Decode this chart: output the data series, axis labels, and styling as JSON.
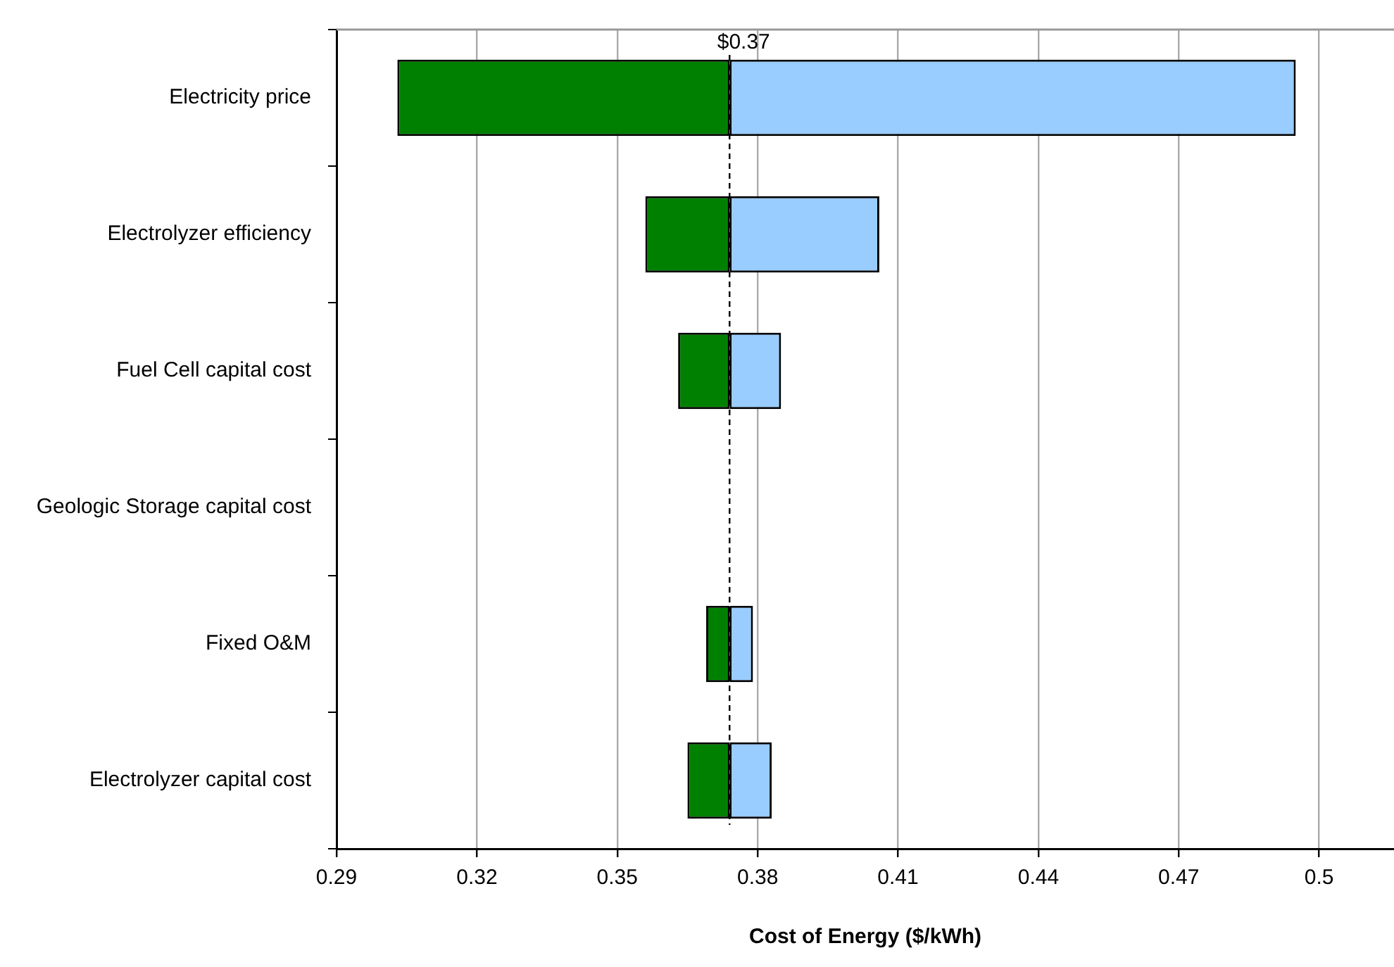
{
  "chart_data": {
    "type": "bar",
    "orientation": "horizontal",
    "xlabel": "Cost of Energy ($/kWh)",
    "categories": [
      "Electricity price",
      "Electrolyzer efficiency",
      "Fuel Cell capital cost",
      "Geologic Storage capital cost",
      "Fixed O&M",
      "Electrolyzer capital cost"
    ],
    "series": [
      {
        "color": "#008000",
        "base": [
          0.303,
          0.356,
          0.363,
          null,
          0.369,
          0.365
        ],
        "values": [
          0.071,
          0.018,
          0.011,
          null,
          0.005,
          0.009
        ]
      },
      {
        "color": "#99ccff",
        "base": [
          0.374,
          0.374,
          0.374,
          null,
          0.374,
          0.374
        ],
        "values": [
          0.121,
          0.032,
          0.011,
          null,
          0.005,
          0.009
        ]
      }
    ],
    "xlim": [
      0.29,
      0.516
    ],
    "xticks": [
      0.29,
      0.32,
      0.35,
      0.38,
      0.41,
      0.44,
      0.47,
      0.5
    ],
    "ref_lines": [
      {
        "axis": "x",
        "value": 0.374,
        "label": "$0.37",
        "line_style": "dashed",
        "color": "#000000"
      }
    ],
    "grid": "x",
    "legend": false
  }
}
